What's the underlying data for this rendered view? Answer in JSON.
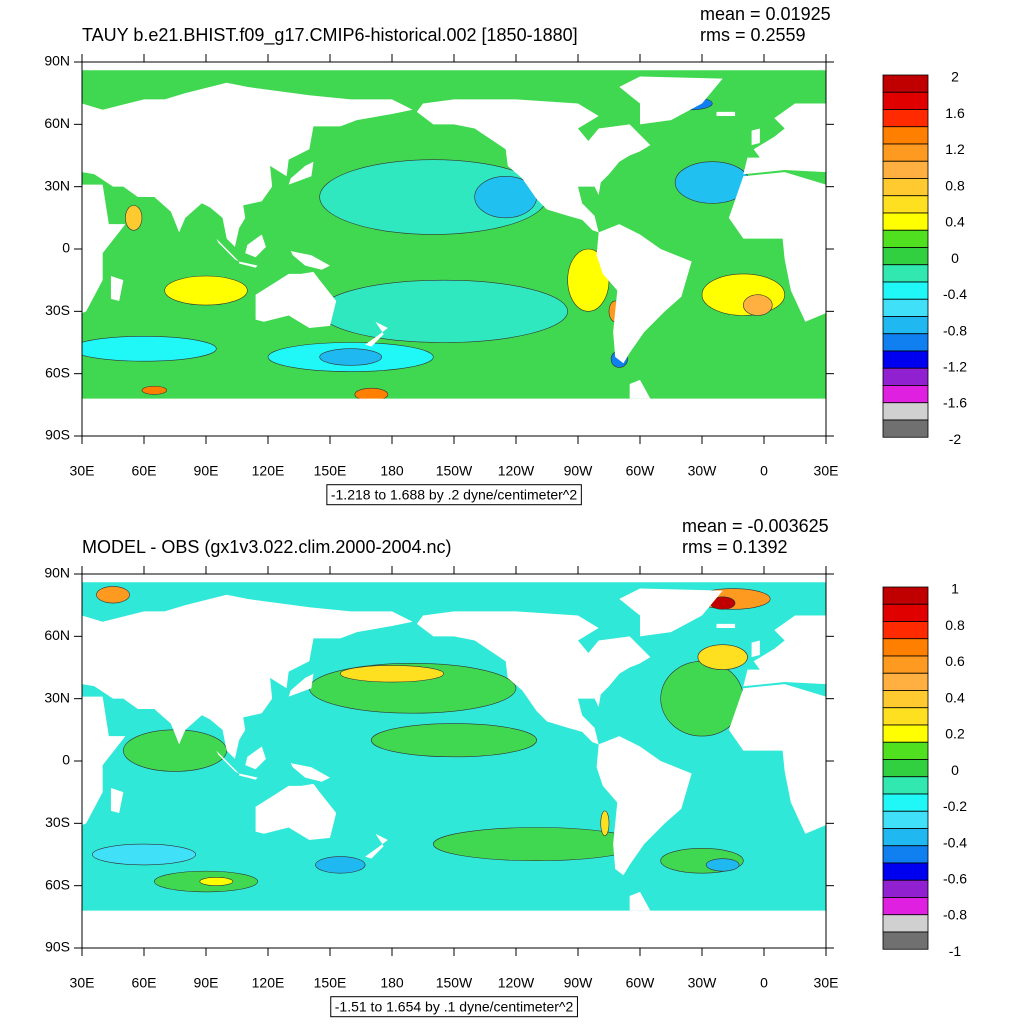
{
  "lat_labels": [
    "90N",
    "60N",
    "30N",
    "0",
    "30S",
    "60S",
    "90S"
  ],
  "lon_labels": [
    "30E",
    "60E",
    "90E",
    "120E",
    "150E",
    "180",
    "150W",
    "120W",
    "90W",
    "60W",
    "30W",
    "0",
    "30E"
  ],
  "panels": [
    {
      "title": "TAUY b.e21.BHIST.f09_g17.CMIP6-historical.002 [1850-1880]",
      "mean": "mean = 0.01925",
      "rms": "rms = 0.2559",
      "info": "-1.218 to 1.688 by .2 dyne/centimeter^2",
      "colorbar": {
        "labels": [
          2,
          1.6,
          1.2,
          0.8,
          0.4,
          0,
          -0.4,
          -0.8,
          -1.2,
          -1.6,
          -2
        ],
        "colors": [
          "#c00000",
          "#e00000",
          "#ff2a00",
          "#ff8000",
          "#ff9a20",
          "#ffb040",
          "#ffca30",
          "#ffe020",
          "#ffff00",
          "#50e020",
          "#30d040",
          "#30e8b0",
          "#20f8f8",
          "#40e0f8",
          "#20b8f0",
          "#1080f0",
          "#0000f0",
          "#9020d0",
          "#e020e0",
          "#d0d0d0"
        ]
      }
    },
    {
      "title": "MODEL - OBS (gx1v3.022.clim.2000-2004.nc)",
      "mean": "mean = -0.003625",
      "rms": "rms = 0.1392",
      "info": "-1.51 to 1.654 by .1 dyne/centimeter^2",
      "colorbar": {
        "labels": [
          1,
          0.8,
          0.6,
          0.4,
          0.2,
          0,
          -0.2,
          -0.4,
          -0.6,
          -0.8,
          -1
        ],
        "colors": [
          "#c00000",
          "#e00000",
          "#ff2a00",
          "#ff8000",
          "#ff9a20",
          "#ffb040",
          "#ffca30",
          "#ffe020",
          "#ffff00",
          "#50e020",
          "#30d040",
          "#30e8b0",
          "#20f8f8",
          "#40e0f8",
          "#20b8f0",
          "#1080f0",
          "#0000f0",
          "#9020d0",
          "#e020e0",
          "#d0d0d0"
        ]
      }
    }
  ]
}
